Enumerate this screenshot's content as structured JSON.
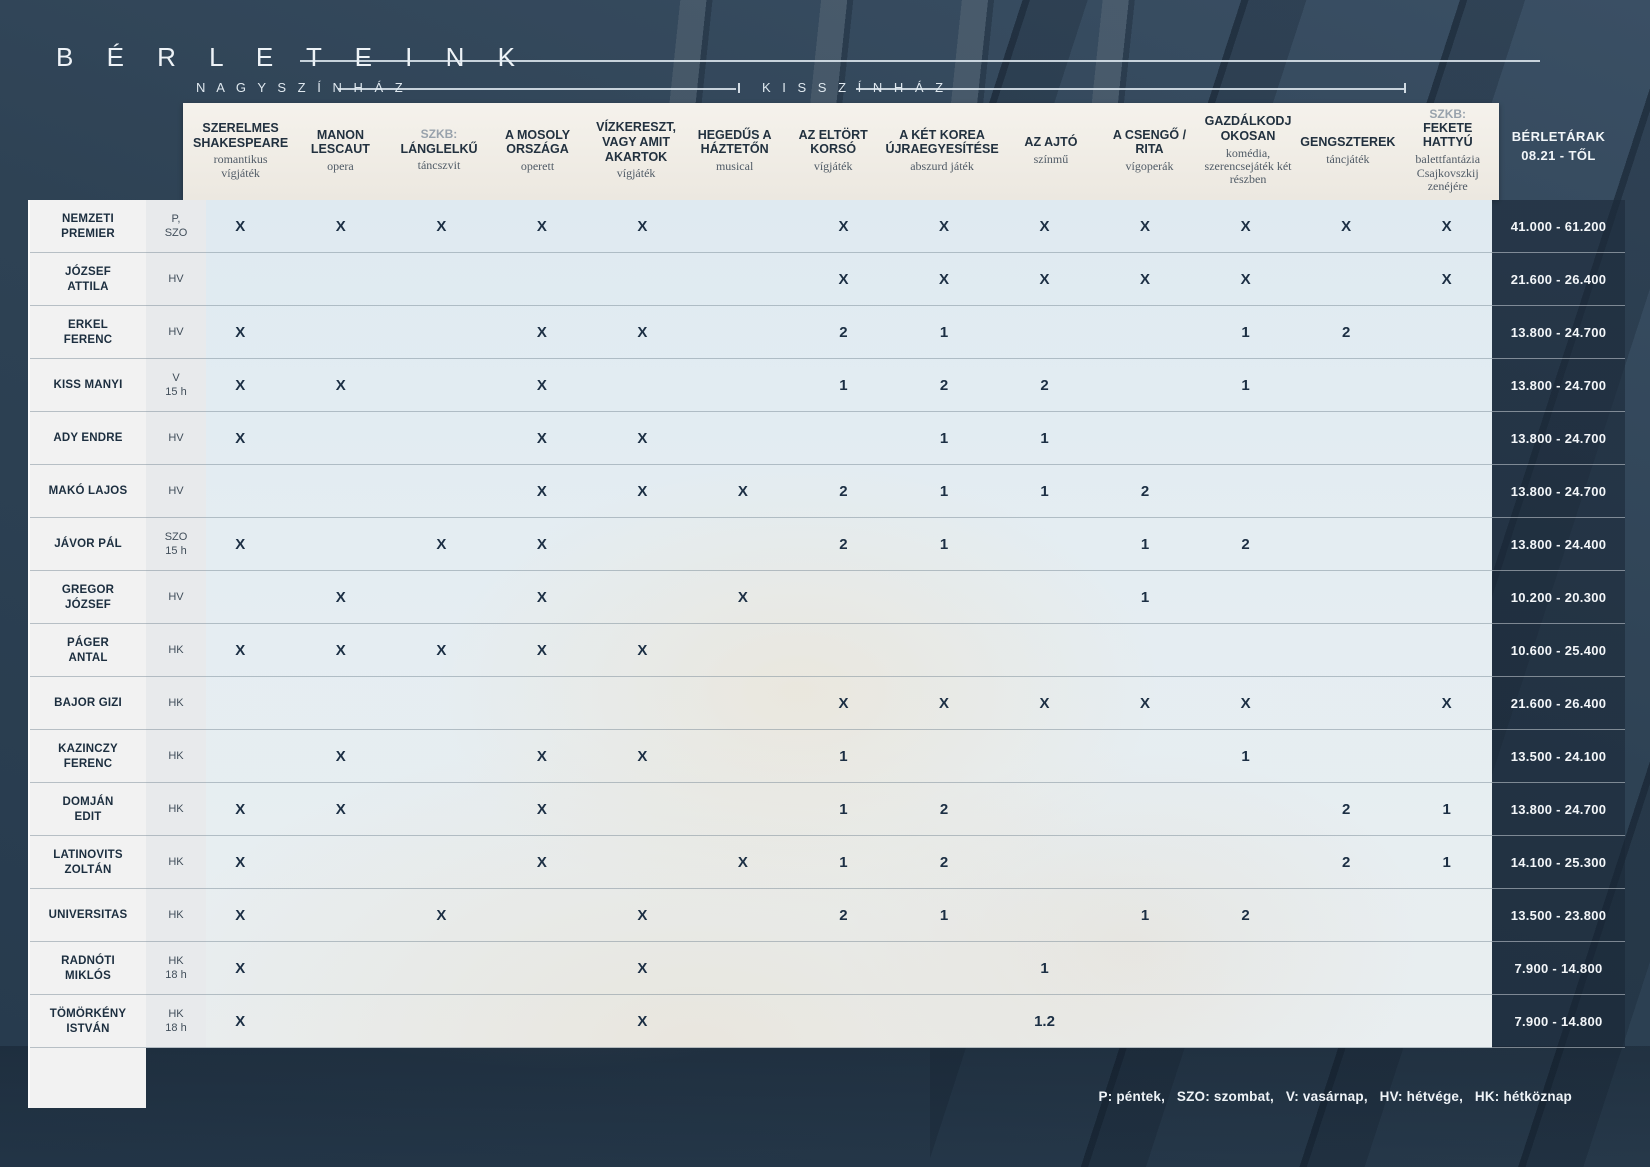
{
  "title": "B É R L E T E I N K",
  "sections": {
    "left": "N A G Y S Z Í N H Á Z",
    "right": "K I S S Z Í N H Á Z"
  },
  "price_header": "BÉRLETÁRAK\n08.21 - TŐL",
  "legend": "P: péntek,   SZO: szombat,   V: vasárnap,   HV: hétvége,   HK: hétköznap",
  "columns": [
    {
      "prefix": "",
      "title": "SZERELMES SHAKESPEARE",
      "subtitle": "romantikus vígjáték"
    },
    {
      "prefix": "",
      "title": "MANON LESCAUT",
      "subtitle": "opera"
    },
    {
      "prefix": "SZKB:",
      "title": "LÁNGLELKŰ",
      "subtitle": "táncszvit"
    },
    {
      "prefix": "",
      "title": "A MOSOLY ORSZÁGA",
      "subtitle": "operett"
    },
    {
      "prefix": "",
      "title": "VÍZKERESZT, VAGY AMIT AKARTOK",
      "subtitle": "vígjáték"
    },
    {
      "prefix": "",
      "title": "HEGEDŰS A HÁZTETŐN",
      "subtitle": "musical"
    },
    {
      "prefix": "",
      "title": "AZ ELTÖRT KORSÓ",
      "subtitle": "vígjáték"
    },
    {
      "prefix": "",
      "title": "A KÉT KOREA ÚJRAEGYESÍTÉSE",
      "subtitle": "abszurd játék"
    },
    {
      "prefix": "",
      "title": "AZ AJTÓ",
      "subtitle": "színmű"
    },
    {
      "prefix": "",
      "title": "A CSENGŐ / RITA",
      "subtitle": "vígoperák"
    },
    {
      "prefix": "",
      "title": "GAZDÁLKODJ OKOSAN",
      "subtitle": "komédia, szerencsejáték két részben"
    },
    {
      "prefix": "",
      "title": "GENGSZTEREK",
      "subtitle": "táncjáték"
    },
    {
      "prefix": "SZKB:",
      "title": "FEKETE HATTYÚ",
      "subtitle": "balettfantázia Csajkovszkij zenéjére"
    }
  ],
  "rows": [
    {
      "name": "NEMZETI\nPREMIER",
      "day": "P,\nSZO",
      "cells": [
        "X",
        "X",
        "X",
        "X",
        "X",
        "",
        "X",
        "X",
        "X",
        "X",
        "X",
        "X",
        "X"
      ],
      "price": "41.000 - 61.200"
    },
    {
      "name": "JÓZSEF\nATTILA",
      "day": "HV",
      "cells": [
        "",
        "",
        "",
        "",
        "",
        "",
        "X",
        "X",
        "X",
        "X",
        "X",
        "",
        "X"
      ],
      "price": "21.600 - 26.400"
    },
    {
      "name": "ERKEL\nFERENC",
      "day": "HV",
      "cells": [
        "X",
        "",
        "",
        "X",
        "X",
        "",
        "2",
        "1",
        "",
        "",
        "1",
        "2",
        ""
      ],
      "price": "13.800 - 24.700"
    },
    {
      "name": "KISS MANYI",
      "day": "V\n15 h",
      "cells": [
        "X",
        "X",
        "",
        "X",
        "",
        "",
        "1",
        "2",
        "2",
        "",
        "1",
        "",
        ""
      ],
      "price": "13.800 - 24.700"
    },
    {
      "name": "ADY ENDRE",
      "day": "HV",
      "cells": [
        "X",
        "",
        "",
        "X",
        "X",
        "",
        "",
        "1",
        "1",
        "",
        "",
        "",
        ""
      ],
      "price": "13.800 - 24.700"
    },
    {
      "name": "MAKÓ LAJOS",
      "day": "HV",
      "cells": [
        "",
        "",
        "",
        "X",
        "X",
        "X",
        "2",
        "1",
        "1",
        "2",
        "",
        "",
        ""
      ],
      "price": "13.800 - 24.700"
    },
    {
      "name": "JÁVOR PÁL",
      "day": "SZO\n15 h",
      "cells": [
        "X",
        "",
        "X",
        "X",
        "",
        "",
        "2",
        "1",
        "",
        "1",
        "2",
        "",
        ""
      ],
      "price": "13.800 - 24.400"
    },
    {
      "name": "GREGOR\nJÓZSEF",
      "day": "HV",
      "cells": [
        "",
        "X",
        "",
        "X",
        "",
        "X",
        "",
        "",
        "",
        "1",
        "",
        "",
        ""
      ],
      "price": "10.200 - 20.300"
    },
    {
      "name": "PÁGER\nANTAL",
      "day": "HK",
      "cells": [
        "X",
        "X",
        "X",
        "X",
        "X",
        "",
        "",
        "",
        "",
        "",
        "",
        "",
        ""
      ],
      "price": "10.600 - 25.400"
    },
    {
      "name": "BAJOR GIZI",
      "day": "HK",
      "cells": [
        "",
        "",
        "",
        "",
        "",
        "",
        "X",
        "X",
        "X",
        "X",
        "X",
        "",
        "X"
      ],
      "price": "21.600 - 26.400"
    },
    {
      "name": "KAZINCZY\nFERENC",
      "day": "HK",
      "cells": [
        "",
        "X",
        "",
        "X",
        "X",
        "",
        "1",
        "",
        "",
        "",
        "1",
        "",
        ""
      ],
      "price": "13.500 - 24.100"
    },
    {
      "name": "DOMJÁN\nEDIT",
      "day": "HK",
      "cells": [
        "X",
        "X",
        "",
        "X",
        "",
        "",
        "1",
        "2",
        "",
        "",
        "",
        "2",
        "1"
      ],
      "price": "13.800 - 24.700"
    },
    {
      "name": "LATINOVITS\nZOLTÁN",
      "day": "HK",
      "cells": [
        "X",
        "",
        "",
        "X",
        "",
        "X",
        "1",
        "2",
        "",
        "",
        "",
        "2",
        "1"
      ],
      "price": "14.100 - 25.300"
    },
    {
      "name": "UNIVERSITAS",
      "day": "HK",
      "cells": [
        "X",
        "",
        "X",
        "",
        "X",
        "",
        "2",
        "1",
        "",
        "1",
        "2",
        "",
        ""
      ],
      "price": "13.500 - 23.800"
    },
    {
      "name": "RADNÓTI\nMIKLÓS",
      "day": "HK\n18 h",
      "cells": [
        "X",
        "",
        "",
        "",
        "X",
        "",
        "",
        "",
        "1",
        "",
        "",
        "",
        ""
      ],
      "price": "7.900 - 14.800"
    },
    {
      "name": "TÖMÖRKÉNY\nISTVÁN",
      "day": "HK\n18 h",
      "cells": [
        "X",
        "",
        "",
        "",
        "X",
        "",
        "",
        "",
        "1.2",
        "",
        "",
        "",
        ""
      ],
      "price": "7.900 - 14.800"
    }
  ]
}
